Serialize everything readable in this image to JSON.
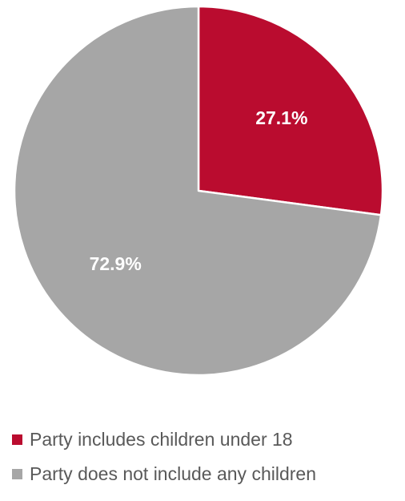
{
  "chart_data": {
    "type": "pie",
    "title": "",
    "slices": [
      {
        "label": "Party includes children under 18",
        "value": 27.1,
        "display": "27.1%",
        "color": "#BA0C2F"
      },
      {
        "label": "Party does not include any children",
        "value": 72.9,
        "display": "72.9%",
        "color": "#A6A6A6"
      }
    ],
    "start_angle": "12 o'clock",
    "direction": "clockwise",
    "legend_position": "bottom-left"
  }
}
